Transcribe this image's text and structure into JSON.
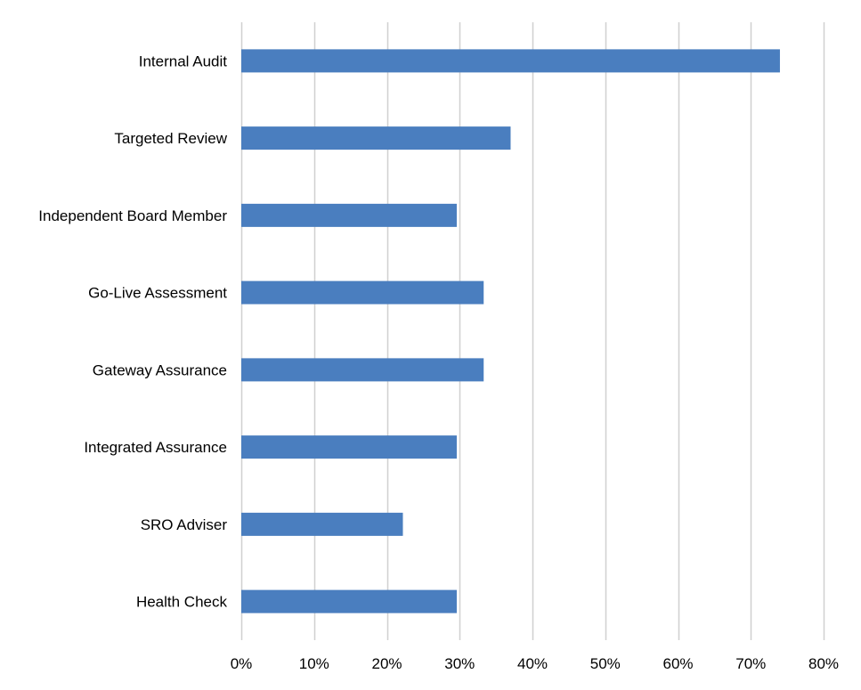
{
  "chart_data": {
    "type": "bar",
    "orientation": "horizontal",
    "title": "",
    "xlabel": "",
    "ylabel": "",
    "categories": [
      "Internal Audit",
      "Targeted Review",
      "Independent Board Member",
      "Go-Live Assessment",
      "Gateway Assurance",
      "Integrated Assurance",
      "SRO Adviser",
      "Health Check"
    ],
    "values": [
      74,
      37,
      29.6,
      33.3,
      33.3,
      29.6,
      22.2,
      29.6
    ],
    "xlim": [
      0,
      80
    ],
    "xticks": [
      0,
      10,
      20,
      30,
      40,
      50,
      60,
      70,
      80
    ],
    "tick_labels": [
      "0%",
      "10%",
      "20%",
      "30%",
      "40%",
      "50%",
      "60%",
      "70%",
      "80%"
    ],
    "grid": "vertical",
    "bar_color": "#4a7ebf",
    "grid_color": "#d0d0d0"
  }
}
